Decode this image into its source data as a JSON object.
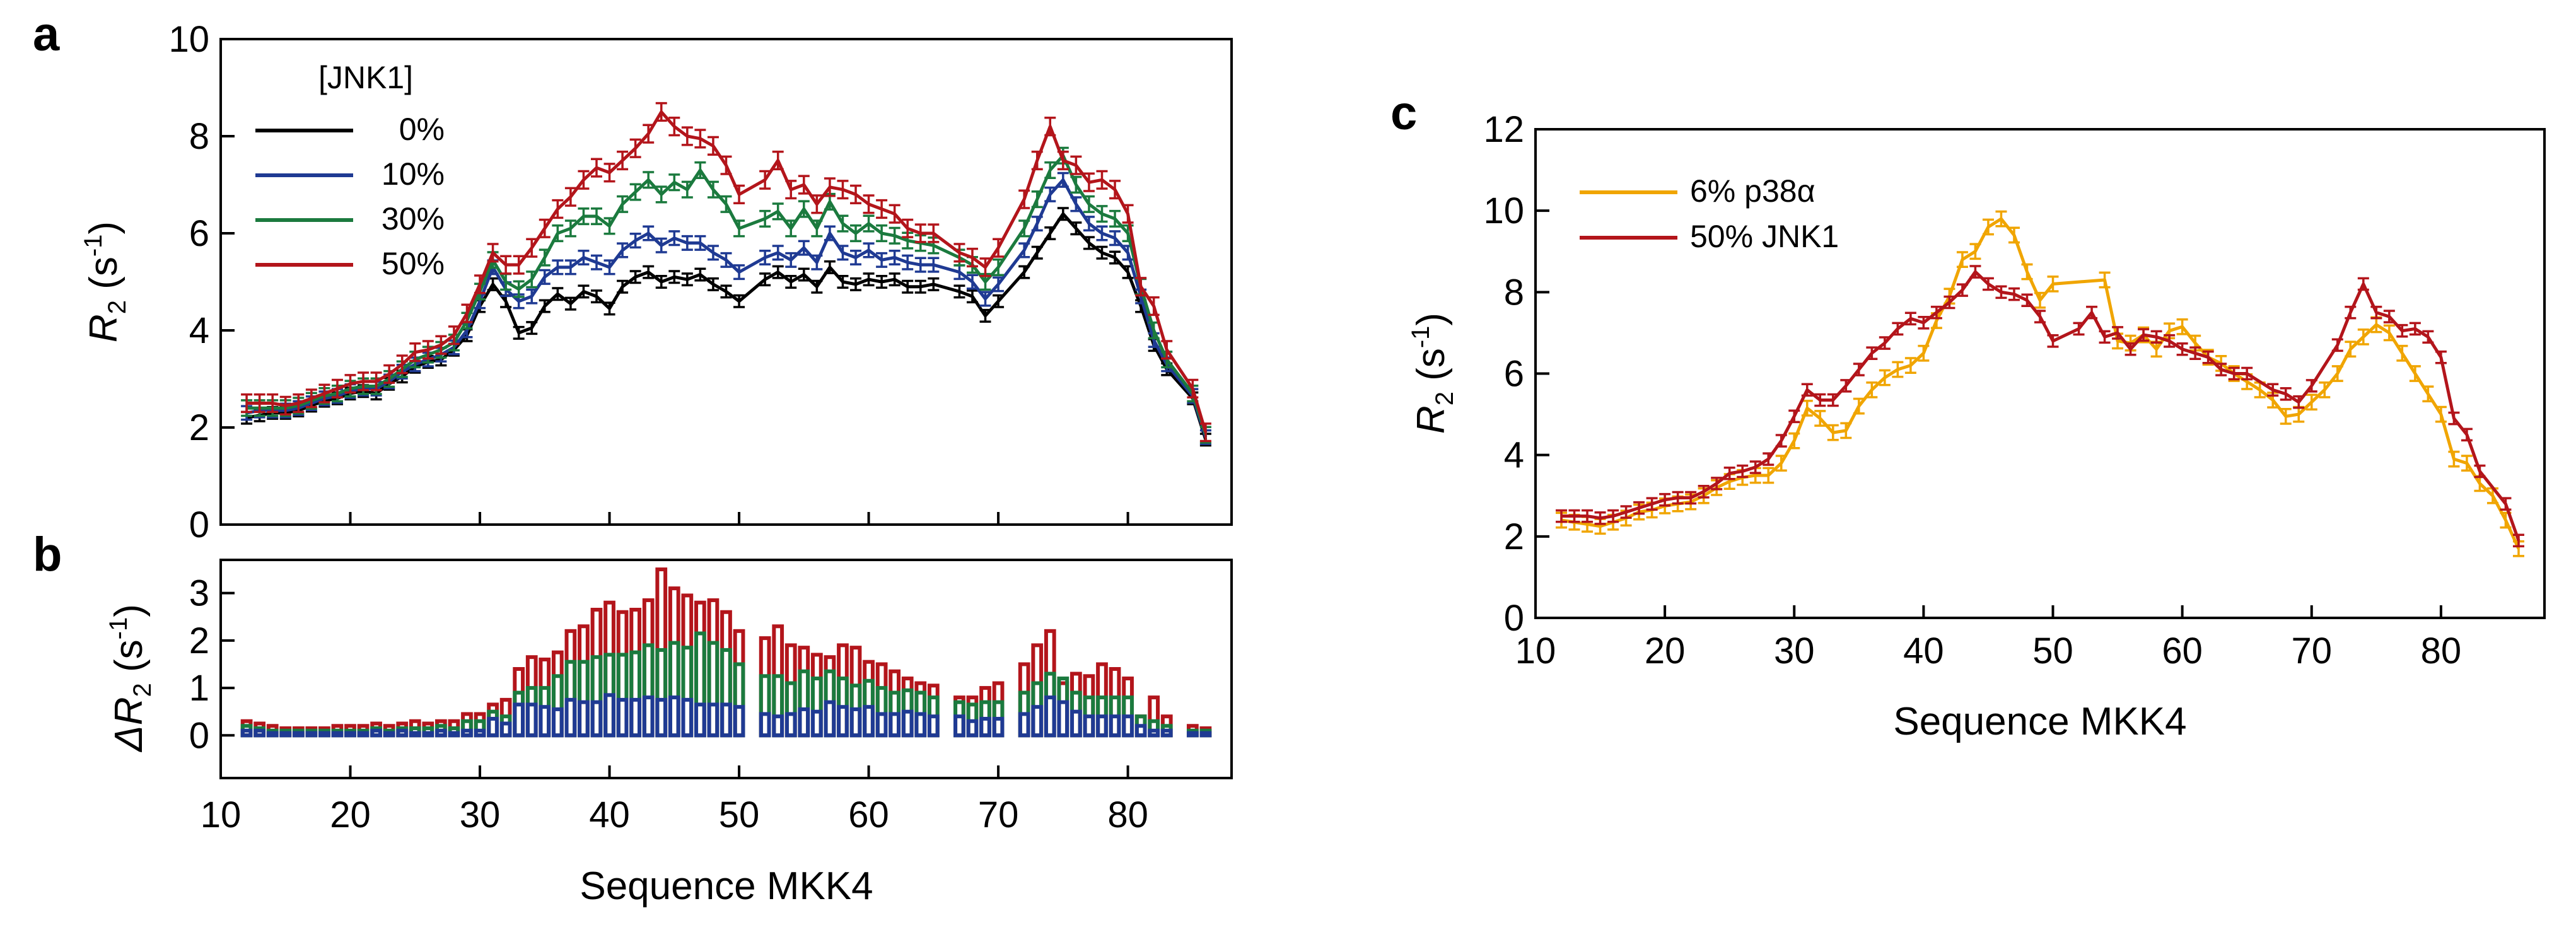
{
  "chart_data": [
    {
      "panel": "a",
      "type": "line",
      "ylabel_symbol": "R",
      "ylabel_sub": "2",
      "ylabel_unit_pre": "(s",
      "ylabel_unit_sup": "-1",
      "ylabel_unit_post": ")",
      "xlim": [
        10,
        88
      ],
      "ylim": [
        0,
        10
      ],
      "yticks": [
        "0",
        "2",
        "4",
        "6",
        "8",
        "10"
      ],
      "legend_title": "[JNK1]",
      "legend_position": "top-left",
      "x": [
        12,
        13,
        14,
        15,
        16,
        17,
        18,
        19,
        20,
        21,
        22,
        23,
        24,
        25,
        26,
        27,
        28,
        29,
        30,
        31,
        32,
        33,
        34,
        35,
        36,
        37,
        38,
        39,
        40,
        41,
        42,
        43,
        44,
        45,
        46,
        47,
        48,
        49,
        50,
        52,
        53,
        54,
        55,
        56,
        57,
        58,
        59,
        60,
        61,
        62,
        63,
        64,
        65,
        67,
        68,
        69,
        70,
        72,
        73,
        74,
        75,
        76,
        77,
        78,
        79,
        80,
        81,
        82,
        83,
        85,
        86
      ],
      "series": [
        {
          "name": "0%",
          "color": "#000000",
          "values": [
            2.2,
            2.25,
            2.3,
            2.3,
            2.35,
            2.45,
            2.55,
            2.6,
            2.7,
            2.75,
            2.7,
            2.9,
            3.05,
            3.25,
            3.35,
            3.4,
            3.6,
            3.9,
            4.5,
            4.95,
            4.6,
            3.95,
            4.05,
            4.5,
            4.75,
            4.55,
            4.8,
            4.7,
            4.45,
            4.9,
            5.1,
            5.2,
            5.0,
            5.1,
            5.05,
            5.15,
            4.95,
            4.8,
            4.6,
            5.05,
            5.2,
            5.0,
            5.15,
            4.9,
            5.3,
            5.0,
            4.95,
            5.05,
            5.0,
            5.05,
            4.9,
            4.9,
            4.95,
            4.8,
            4.7,
            4.3,
            4.6,
            5.2,
            5.6,
            6.0,
            6.4,
            6.1,
            5.8,
            5.6,
            5.5,
            5.2,
            4.5,
            3.7,
            3.2,
            2.6,
            1.75
          ]
        },
        {
          "name": "10%",
          "color": "#1f3a93",
          "values": [
            2.3,
            2.35,
            2.35,
            2.35,
            2.4,
            2.5,
            2.6,
            2.65,
            2.75,
            2.8,
            2.8,
            2.95,
            3.15,
            3.3,
            3.4,
            3.5,
            3.65,
            4.0,
            4.6,
            5.3,
            4.85,
            4.6,
            4.7,
            5.1,
            5.3,
            5.3,
            5.5,
            5.4,
            5.3,
            5.65,
            5.85,
            6.0,
            5.75,
            5.9,
            5.8,
            5.8,
            5.6,
            5.45,
            5.2,
            5.5,
            5.6,
            5.45,
            5.7,
            5.4,
            6.0,
            5.6,
            5.5,
            5.65,
            5.45,
            5.5,
            5.4,
            5.35,
            5.35,
            5.2,
            5.0,
            4.65,
            4.95,
            5.65,
            6.2,
            6.8,
            7.1,
            6.6,
            6.2,
            6.0,
            5.9,
            5.6,
            4.7,
            3.8,
            3.3,
            2.65,
            1.8
          ]
        },
        {
          "name": "30%",
          "color": "#1b7a3e",
          "values": [
            2.4,
            2.4,
            2.4,
            2.4,
            2.45,
            2.55,
            2.65,
            2.7,
            2.8,
            2.85,
            2.85,
            3.0,
            3.2,
            3.4,
            3.5,
            3.6,
            3.75,
            4.2,
            4.8,
            5.45,
            5.0,
            4.85,
            5.05,
            5.5,
            6.0,
            6.1,
            6.35,
            6.35,
            6.15,
            6.6,
            6.85,
            7.1,
            6.8,
            7.05,
            6.9,
            7.3,
            6.9,
            6.6,
            6.1,
            6.3,
            6.45,
            6.1,
            6.5,
            6.1,
            6.65,
            6.2,
            6.0,
            6.2,
            6.0,
            5.95,
            5.85,
            5.8,
            5.75,
            5.5,
            5.35,
            5.0,
            5.3,
            6.1,
            6.7,
            7.3,
            7.6,
            7.0,
            6.6,
            6.4,
            6.3,
            6.0,
            4.9,
            4.0,
            3.4,
            2.7,
            1.85
          ]
        },
        {
          "name": "50%",
          "color": "#b3151b",
          "values": [
            2.5,
            2.5,
            2.5,
            2.45,
            2.5,
            2.6,
            2.7,
            2.8,
            2.9,
            2.95,
            2.95,
            3.1,
            3.3,
            3.55,
            3.6,
            3.7,
            3.9,
            4.35,
            4.95,
            5.6,
            5.35,
            5.35,
            5.7,
            6.1,
            6.5,
            6.75,
            7.1,
            7.35,
            7.25,
            7.5,
            7.75,
            8.05,
            8.5,
            8.2,
            8.0,
            7.95,
            7.8,
            7.4,
            6.8,
            7.1,
            7.5,
            6.9,
            7.0,
            6.6,
            6.95,
            6.9,
            6.8,
            6.6,
            6.5,
            6.4,
            6.1,
            6.0,
            6.0,
            5.6,
            5.5,
            5.3,
            5.7,
            6.7,
            7.5,
            8.2,
            7.5,
            7.4,
            7.05,
            7.1,
            6.9,
            6.4,
            4.9,
            4.5,
            3.6,
            2.8,
            1.9
          ]
        }
      ]
    },
    {
      "panel": "b",
      "type": "bar",
      "ylabel_symbol": "ΔR",
      "ylabel_sub": "2",
      "ylabel_unit_pre": "(s",
      "ylabel_unit_sup": "-1",
      "ylabel_unit_post": ")",
      "xlabel": "Sequence MKK4",
      "xlim": [
        10,
        88
      ],
      "ylim": [
        -0.9,
        3.7
      ],
      "xticks": [
        "10",
        "20",
        "30",
        "40",
        "50",
        "60",
        "70",
        "80"
      ],
      "yticks": [
        "0",
        "1",
        "2",
        "3"
      ],
      "x": [
        12,
        13,
        14,
        15,
        16,
        17,
        18,
        19,
        20,
        21,
        22,
        23,
        24,
        25,
        26,
        27,
        28,
        29,
        30,
        31,
        32,
        33,
        34,
        35,
        36,
        37,
        38,
        39,
        40,
        41,
        42,
        43,
        44,
        45,
        46,
        47,
        48,
        49,
        50,
        52,
        53,
        54,
        55,
        56,
        57,
        58,
        59,
        60,
        61,
        62,
        63,
        64,
        65,
        67,
        68,
        69,
        70,
        72,
        73,
        74,
        75,
        76,
        77,
        78,
        79,
        80,
        81,
        82,
        83,
        85,
        86
      ],
      "series": [
        {
          "name": "50%",
          "color": "#b3151b",
          "values": [
            0.3,
            0.25,
            0.2,
            0.15,
            0.15,
            0.15,
            0.15,
            0.2,
            0.2,
            0.2,
            0.25,
            0.2,
            0.25,
            0.3,
            0.25,
            0.3,
            0.3,
            0.45,
            0.45,
            0.65,
            0.75,
            1.4,
            1.65,
            1.6,
            1.75,
            2.2,
            2.3,
            2.65,
            2.8,
            2.6,
            2.65,
            2.85,
            3.5,
            3.1,
            2.95,
            2.8,
            2.85,
            2.6,
            2.2,
            2.05,
            2.3,
            1.9,
            1.85,
            1.7,
            1.65,
            1.9,
            1.85,
            1.55,
            1.5,
            1.35,
            1.2,
            1.1,
            1.05,
            0.8,
            0.8,
            1.0,
            1.1,
            1.5,
            1.9,
            2.2,
            1.1,
            1.3,
            1.25,
            1.5,
            1.4,
            1.2,
            0.4,
            0.8,
            0.4,
            0.2,
            0.15
          ]
        },
        {
          "name": "30%",
          "color": "#1b7a3e",
          "values": [
            0.2,
            0.15,
            0.1,
            0.1,
            0.1,
            0.1,
            0.1,
            0.1,
            0.1,
            0.1,
            0.15,
            0.1,
            0.15,
            0.15,
            0.15,
            0.2,
            0.15,
            0.3,
            0.3,
            0.5,
            0.4,
            0.9,
            1.0,
            1.0,
            1.25,
            1.55,
            1.55,
            1.65,
            1.7,
            1.7,
            1.75,
            1.9,
            1.8,
            1.95,
            1.85,
            2.15,
            1.95,
            1.8,
            1.5,
            1.25,
            1.25,
            1.1,
            1.35,
            1.2,
            1.35,
            1.2,
            1.05,
            1.15,
            1.0,
            0.9,
            0.95,
            0.9,
            0.8,
            0.7,
            0.65,
            0.7,
            0.7,
            0.9,
            1.1,
            1.3,
            1.2,
            0.9,
            0.8,
            0.8,
            0.8,
            0.8,
            0.4,
            0.3,
            0.2,
            0.1,
            0.1
          ]
        },
        {
          "name": "10%",
          "color": "#1f3a93",
          "values": [
            0.1,
            0.1,
            0.05,
            0.05,
            0.05,
            0.05,
            0.05,
            0.05,
            0.05,
            0.05,
            0.1,
            0.05,
            0.1,
            0.05,
            0.05,
            0.1,
            0.05,
            0.1,
            0.1,
            0.35,
            0.25,
            0.65,
            0.65,
            0.6,
            0.55,
            0.75,
            0.7,
            0.7,
            0.85,
            0.75,
            0.75,
            0.8,
            0.75,
            0.8,
            0.75,
            0.65,
            0.65,
            0.65,
            0.6,
            0.45,
            0.4,
            0.45,
            0.55,
            0.5,
            0.7,
            0.6,
            0.55,
            0.6,
            0.45,
            0.45,
            0.5,
            0.45,
            0.4,
            0.4,
            0.3,
            0.35,
            0.35,
            0.45,
            0.6,
            0.8,
            0.7,
            0.5,
            0.4,
            0.4,
            0.4,
            0.4,
            0.2,
            0.1,
            0.1,
            0.05,
            0.05
          ]
        }
      ]
    },
    {
      "panel": "c",
      "type": "line",
      "ylabel_symbol": "R",
      "ylabel_sub": "2",
      "ylabel_unit_pre": "(s",
      "ylabel_unit_sup": "-1",
      "ylabel_unit_post": ")",
      "xlabel": "Sequence MKK4",
      "xlim": [
        10,
        88
      ],
      "ylim": [
        0,
        12
      ],
      "xticks": [
        "10",
        "20",
        "30",
        "40",
        "50",
        "60",
        "70",
        "80"
      ],
      "yticks": [
        "0",
        "2",
        "4",
        "6",
        "8",
        "10",
        "12"
      ],
      "legend_position": "top-left",
      "series": [
        {
          "name": "6% p38α",
          "color": "#f0a500",
          "x": [
            12,
            13,
            14,
            15,
            16,
            17,
            18,
            19,
            20,
            21,
            22,
            23,
            24,
            25,
            26,
            27,
            28,
            29,
            30,
            31,
            32,
            33,
            34,
            35,
            36,
            37,
            38,
            39,
            40,
            41,
            42,
            43,
            44,
            45,
            46,
            47,
            48,
            49,
            50,
            54,
            55,
            56,
            57,
            58,
            59,
            60,
            61,
            62,
            63,
            64,
            65,
            66,
            67,
            68,
            69,
            70,
            71,
            72,
            73,
            74,
            75,
            76,
            77,
            78,
            79,
            80,
            81,
            82,
            83,
            84,
            85,
            86
          ],
          "values": [
            2.4,
            2.35,
            2.3,
            2.25,
            2.35,
            2.45,
            2.6,
            2.65,
            2.75,
            2.8,
            2.85,
            3.0,
            3.2,
            3.35,
            3.45,
            3.5,
            3.5,
            3.8,
            4.35,
            5.15,
            4.9,
            4.55,
            4.6,
            5.2,
            5.6,
            5.9,
            6.1,
            6.2,
            6.5,
            7.3,
            7.9,
            8.8,
            9.0,
            9.6,
            9.8,
            9.4,
            8.5,
            7.8,
            8.2,
            8.3,
            6.8,
            6.75,
            6.95,
            6.6,
            7.05,
            7.15,
            6.75,
            6.4,
            6.25,
            6.0,
            5.8,
            5.6,
            5.35,
            4.95,
            5.0,
            5.3,
            5.6,
            6.0,
            6.6,
            6.9,
            7.2,
            7.0,
            6.5,
            6.0,
            5.5,
            5.0,
            3.9,
            3.8,
            3.3,
            3.0,
            2.4,
            1.7
          ]
        },
        {
          "name": "50% JNK1",
          "color": "#b3151b",
          "x": [
            12,
            13,
            14,
            15,
            16,
            17,
            18,
            19,
            20,
            21,
            22,
            23,
            24,
            25,
            26,
            27,
            28,
            29,
            30,
            31,
            32,
            33,
            34,
            35,
            36,
            37,
            38,
            39,
            40,
            41,
            42,
            43,
            44,
            45,
            46,
            47,
            48,
            49,
            50,
            52,
            53,
            54,
            55,
            56,
            57,
            58,
            59,
            60,
            61,
            62,
            63,
            64,
            65,
            67,
            68,
            69,
            70,
            72,
            73,
            74,
            75,
            76,
            77,
            78,
            79,
            80,
            81,
            82,
            83,
            85,
            86
          ],
          "values": [
            2.5,
            2.5,
            2.5,
            2.45,
            2.5,
            2.6,
            2.7,
            2.8,
            2.9,
            2.95,
            2.95,
            3.1,
            3.3,
            3.55,
            3.6,
            3.7,
            3.9,
            4.35,
            4.95,
            5.6,
            5.35,
            5.35,
            5.7,
            6.1,
            6.5,
            6.75,
            7.1,
            7.35,
            7.25,
            7.5,
            7.75,
            8.05,
            8.5,
            8.2,
            8.0,
            7.95,
            7.8,
            7.4,
            6.8,
            7.1,
            7.5,
            6.9,
            7.0,
            6.6,
            6.95,
            6.9,
            6.8,
            6.6,
            6.5,
            6.4,
            6.1,
            6.0,
            6.0,
            5.6,
            5.5,
            5.3,
            5.7,
            6.7,
            7.5,
            8.2,
            7.5,
            7.4,
            7.05,
            7.1,
            6.9,
            6.4,
            4.9,
            4.5,
            3.6,
            2.8,
            1.9
          ]
        }
      ]
    }
  ]
}
